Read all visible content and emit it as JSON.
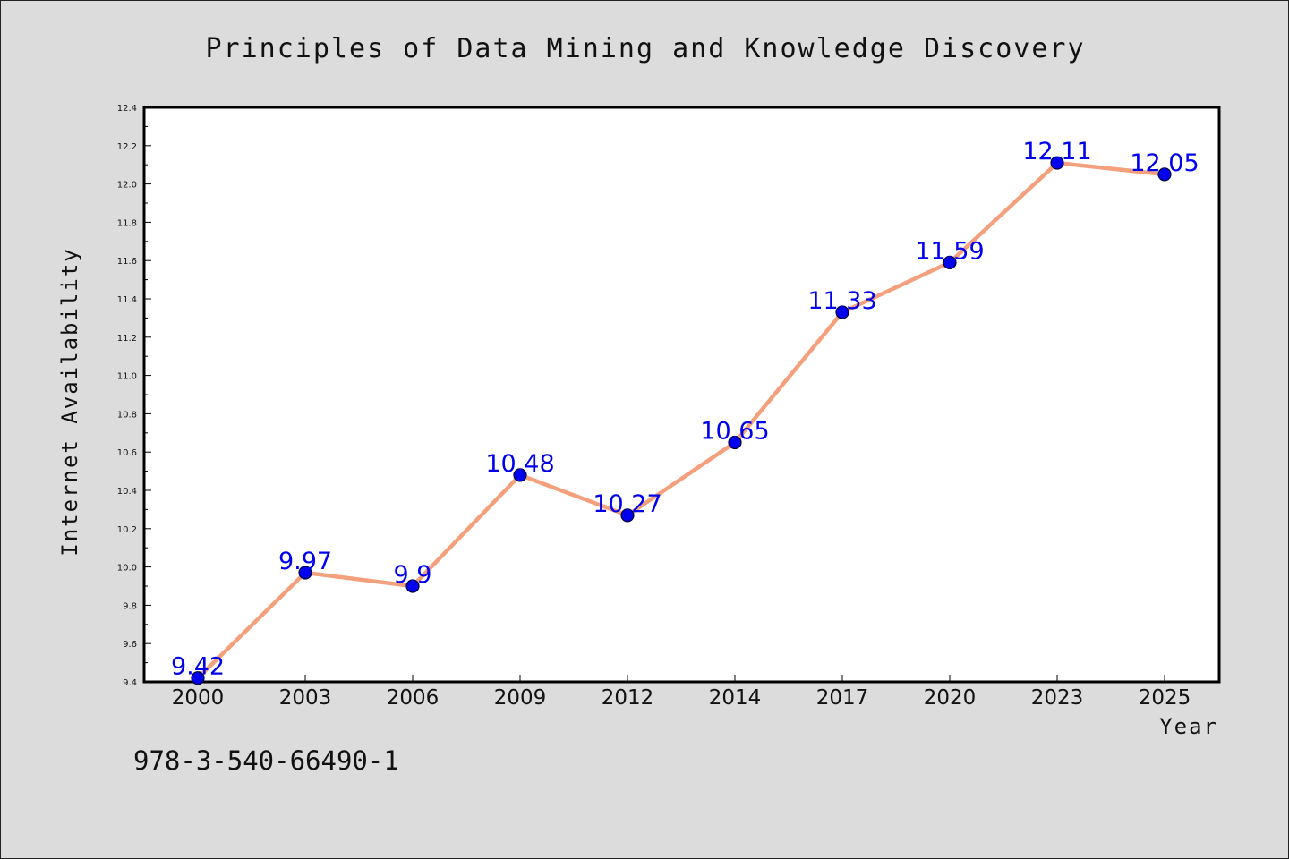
{
  "chart_data": {
    "type": "line",
    "title": "Principles of Data Mining and Knowledge Discovery",
    "xlabel": "Year",
    "ylabel": "Internet Availability",
    "categories": [
      "2000",
      "2003",
      "2006",
      "2009",
      "2012",
      "2014",
      "2017",
      "2020",
      "2023",
      "2025"
    ],
    "series": [
      {
        "values": [
          9.42,
          9.97,
          9.9,
          10.48,
          10.27,
          10.65,
          11.33,
          11.59,
          12.11,
          12.05
        ],
        "data_labels": [
          "9.42",
          "9.97",
          "9.9",
          "10.48",
          "10.27",
          "10.65",
          "11.33",
          "11.59",
          "12.11",
          "12.05"
        ]
      }
    ],
    "ylim": [
      9.4,
      12.4
    ],
    "yticks": [
      "9.4",
      "9.6",
      "9.8",
      "10.0",
      "10.2",
      "10.4",
      "10.6",
      "10.8",
      "11.0",
      "11.2",
      "11.4",
      "11.6",
      "11.8",
      "12.0",
      "12.2",
      "12.4"
    ],
    "grid": false,
    "legend": "none",
    "colors": {
      "line": "#f4a07c",
      "marker_fill": "#0000ee",
      "marker_edge": "#000033",
      "data_label": "#0000ee",
      "plot_bg": "#ffffff",
      "page_bg": "#dcdcdc"
    }
  },
  "footer": {
    "code": "978-3-540-66490-1"
  }
}
